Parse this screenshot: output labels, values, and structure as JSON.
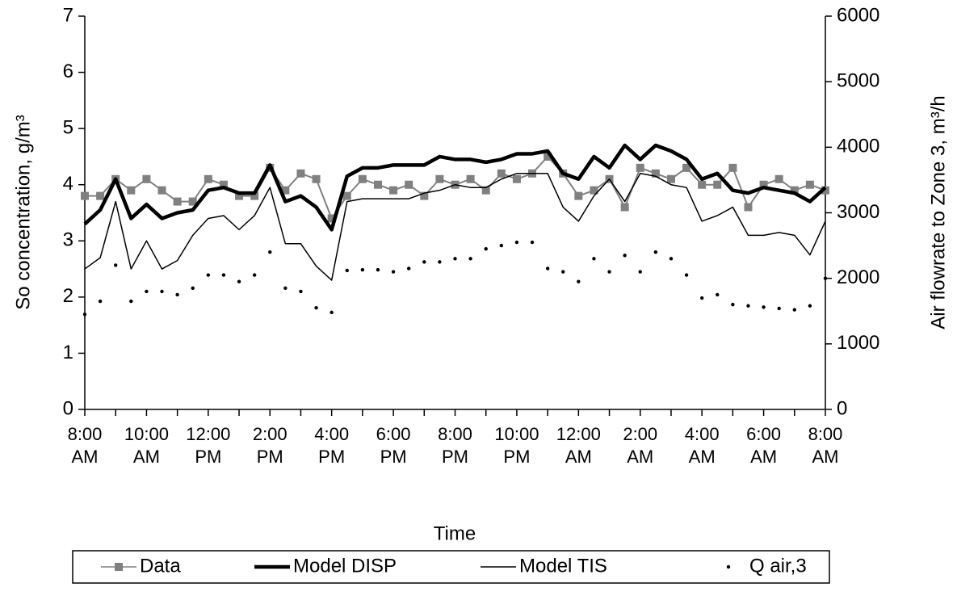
{
  "chart_data": {
    "type": "line",
    "x_label": "Time",
    "y_label": "So concentration, g/m³",
    "y2_label": "Air flowrate to Zone 3, m³/h",
    "categories": [
      "8:00 AM",
      null,
      null,
      null,
      "10:00 AM",
      null,
      null,
      null,
      "12:00 PM",
      null,
      null,
      null,
      "2:00 PM",
      null,
      null,
      null,
      "4:00 PM",
      null,
      null,
      null,
      "6:00 PM",
      null,
      null,
      null,
      "8:00 PM",
      null,
      null,
      null,
      "10:00 PM",
      null,
      null,
      null,
      "12:00 AM",
      null,
      null,
      null,
      "2:00 AM",
      null,
      null,
      null,
      "4:00 AM",
      null,
      null,
      null,
      "6:00 AM",
      null,
      null,
      null,
      "8:00 AM"
    ],
    "ylim": [
      0,
      7
    ],
    "yticks": [
      0,
      1,
      2,
      3,
      4,
      5,
      6,
      7
    ],
    "y2lim": [
      0,
      6000
    ],
    "y2ticks": [
      0,
      1000,
      2000,
      3000,
      4000,
      5000,
      6000
    ],
    "series": [
      {
        "name": "Data",
        "color": "#808080",
        "style": "line-square",
        "values": [
          3.8,
          3.8,
          4.1,
          3.9,
          4.1,
          3.9,
          3.7,
          3.7,
          4.1,
          4.0,
          3.8,
          3.8,
          4.3,
          3.9,
          4.2,
          4.1,
          3.4,
          3.8,
          4.1,
          4.0,
          3.9,
          4.0,
          3.8,
          4.1,
          4.0,
          4.1,
          3.9,
          4.2,
          4.1,
          4.2,
          4.5,
          4.2,
          3.8,
          3.9,
          4.1,
          3.6,
          4.3,
          4.2,
          4.1,
          4.3,
          4.0,
          4.0,
          4.3,
          3.6,
          4.0,
          4.1,
          3.9,
          4.0,
          3.9
        ]
      },
      {
        "name": "Model DISP",
        "color": "#000000",
        "style": "thick",
        "values": [
          3.3,
          3.55,
          4.1,
          3.4,
          3.65,
          3.4,
          3.5,
          3.55,
          3.9,
          3.95,
          3.85,
          3.85,
          4.35,
          3.7,
          3.8,
          3.6,
          3.2,
          4.15,
          4.3,
          4.3,
          4.35,
          4.35,
          4.35,
          4.5,
          4.45,
          4.45,
          4.4,
          4.45,
          4.55,
          4.55,
          4.6,
          4.2,
          4.1,
          4.5,
          4.3,
          4.7,
          4.45,
          4.7,
          4.6,
          4.45,
          4.1,
          4.2,
          3.9,
          3.85,
          3.95,
          3.9,
          3.85,
          3.7,
          3.95
        ]
      },
      {
        "name": "Model TIS",
        "color": "#000000",
        "style": "thin",
        "values": [
          2.5,
          2.7,
          3.7,
          2.5,
          3.0,
          2.5,
          2.65,
          3.1,
          3.4,
          3.45,
          3.2,
          3.45,
          3.95,
          2.95,
          2.95,
          2.55,
          2.3,
          3.7,
          3.75,
          3.75,
          3.75,
          3.75,
          3.85,
          3.9,
          4.0,
          3.95,
          3.95,
          4.1,
          4.2,
          4.2,
          4.2,
          3.6,
          3.35,
          3.8,
          4.1,
          3.7,
          4.2,
          4.15,
          4.0,
          3.95,
          3.35,
          3.45,
          3.6,
          3.1,
          3.1,
          3.15,
          3.1,
          2.75,
          3.35
        ]
      },
      {
        "name": "Q air,3",
        "color": "#000000",
        "style": "dots",
        "axis": "y2",
        "values": [
          1450,
          1650,
          2200,
          1650,
          1800,
          1800,
          1750,
          1850,
          2050,
          2050,
          1950,
          2050,
          2400,
          1850,
          1800,
          1550,
          1480,
          2120,
          2130,
          2130,
          2100,
          2150,
          2250,
          2250,
          2300,
          2300,
          2450,
          2500,
          2550,
          2550,
          2150,
          2100,
          1950,
          2300,
          2100,
          2350,
          2100,
          2400,
          2300,
          2050,
          1700,
          1750,
          1600,
          1580,
          1560,
          1540,
          1520,
          1580,
          2000
        ]
      }
    ]
  }
}
